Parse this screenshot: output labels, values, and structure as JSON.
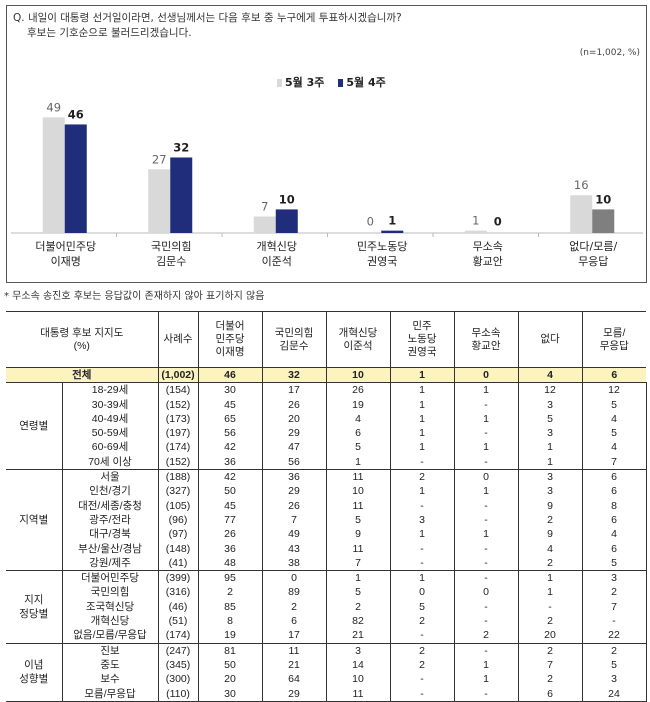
{
  "chart_data": {
    "type": "bar",
    "title": "Q. 내일이 대통령 선거일이라면, 선생님께서는 다음 후보 중 누구에게 투표하시겠습니까?",
    "subtitle": "후보는 기호순으로 불러드리겠습니다.",
    "note": "(n=1,002, %)",
    "categories": [
      [
        "더불어민주당",
        "이재명"
      ],
      [
        "국민의힘",
        "김문수"
      ],
      [
        "개혁신당",
        "이준석"
      ],
      [
        "민주노동당",
        "권영국"
      ],
      [
        "무소속",
        "황교안"
      ],
      [
        "없다/모름/",
        "무응답"
      ]
    ],
    "series": [
      {
        "name": "5월 3주",
        "color": "#d9d9d9",
        "values": [
          49,
          27,
          7,
          0,
          1,
          16
        ]
      },
      {
        "name": "5월 4주",
        "color": "#1f2d7a",
        "values": [
          46,
          32,
          10,
          1,
          0,
          10
        ]
      }
    ],
    "last_category_color_4w": "#7f7f7f",
    "ylim": [
      0,
      50
    ],
    "legend": "top-center"
  },
  "footnote": "* 무소속 송진호 후보는 응답값이 존재하지 않아 표기하지 않음",
  "table": {
    "corner": "대통령 후보 지지도\n(%)",
    "headers": [
      "사례수",
      "더불어\n민주당\n이재명",
      "국민의힘\n김문수",
      "개혁신당\n이준석",
      "민주\n노동당\n권영국",
      "무소속\n황교안",
      "없다",
      "모름/\n무응답"
    ],
    "total": {
      "label": "전체",
      "values": [
        "(1,002)",
        "46",
        "32",
        "10",
        "1",
        "0",
        "4",
        "6"
      ]
    },
    "groups": [
      {
        "name": "연령별",
        "rows": [
          [
            "18-29세",
            "(154)",
            "30",
            "17",
            "26",
            "1",
            "1",
            "12",
            "12"
          ],
          [
            "30-39세",
            "(152)",
            "45",
            "26",
            "19",
            "1",
            "-",
            "3",
            "5"
          ],
          [
            "40-49세",
            "(173)",
            "65",
            "20",
            "4",
            "1",
            "1",
            "5",
            "4"
          ],
          [
            "50-59세",
            "(197)",
            "56",
            "29",
            "6",
            "1",
            "-",
            "3",
            "5"
          ],
          [
            "60-69세",
            "(174)",
            "42",
            "47",
            "5",
            "1",
            "1",
            "1",
            "4"
          ],
          [
            "70세 이상",
            "(152)",
            "36",
            "56",
            "1",
            "-",
            "-",
            "1",
            "7"
          ]
        ]
      },
      {
        "name": "지역별",
        "rows": [
          [
            "서울",
            "(188)",
            "42",
            "36",
            "11",
            "2",
            "0",
            "3",
            "6"
          ],
          [
            "인천/경기",
            "(327)",
            "50",
            "29",
            "10",
            "1",
            "1",
            "3",
            "6"
          ],
          [
            "대전/세종/충청",
            "(105)",
            "45",
            "26",
            "11",
            "-",
            "-",
            "9",
            "8"
          ],
          [
            "광주/전라",
            "(96)",
            "77",
            "7",
            "5",
            "3",
            "-",
            "2",
            "6"
          ],
          [
            "대구/경북",
            "(97)",
            "26",
            "49",
            "9",
            "1",
            "1",
            "9",
            "4"
          ],
          [
            "부산/울산/경남",
            "(148)",
            "36",
            "43",
            "11",
            "-",
            "-",
            "4",
            "6"
          ],
          [
            "강원/제주",
            "(41)",
            "48",
            "38",
            "7",
            "-",
            "-",
            "2",
            "5"
          ]
        ]
      },
      {
        "name": "지지\n정당별",
        "rows": [
          [
            "더불어민주당",
            "(399)",
            "95",
            "0",
            "1",
            "1",
            "-",
            "1",
            "3"
          ],
          [
            "국민의힘",
            "(316)",
            "2",
            "89",
            "5",
            "0",
            "0",
            "1",
            "2"
          ],
          [
            "조국혁신당",
            "(46)",
            "85",
            "2",
            "2",
            "5",
            "-",
            "-",
            "7"
          ],
          [
            "개혁신당",
            "(51)",
            "8",
            "6",
            "82",
            "2",
            "-",
            "2",
            "-"
          ],
          [
            "없음/모름/무응답",
            "(174)",
            "19",
            "17",
            "21",
            "-",
            "2",
            "20",
            "22"
          ]
        ]
      },
      {
        "name": "이념\n성향별",
        "rows": [
          [
            "진보",
            "(247)",
            "81",
            "11",
            "3",
            "2",
            "-",
            "2",
            "2"
          ],
          [
            "중도",
            "(345)",
            "50",
            "21",
            "14",
            "2",
            "1",
            "7",
            "5"
          ],
          [
            "보수",
            "(300)",
            "20",
            "64",
            "10",
            "-",
            "1",
            "2",
            "3"
          ],
          [
            "모름/무응답",
            "(110)",
            "30",
            "29",
            "11",
            "-",
            "-",
            "6",
            "24"
          ]
        ]
      }
    ]
  }
}
